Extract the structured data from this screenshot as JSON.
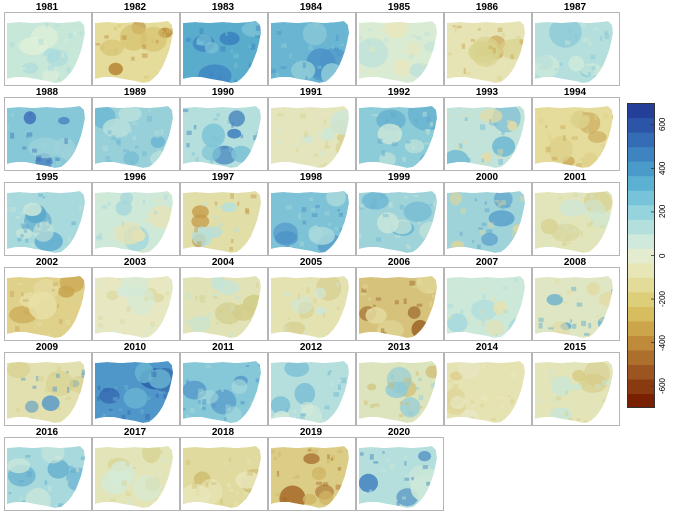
{
  "figure": {
    "panels": [
      {
        "year": "1981",
        "base": "#c7e7d9",
        "blobs": [
          {
            "c": "#a7d9dd",
            "r": 0.35
          },
          {
            "c": "#dff0d9",
            "r": 0.3
          }
        ]
      },
      {
        "year": "1982",
        "base": "#e5dc9b",
        "blobs": [
          {
            "c": "#b98a3a",
            "r": 0.28
          },
          {
            "c": "#d4bf6a",
            "r": 0.4
          }
        ]
      },
      {
        "year": "1983",
        "base": "#5aaccd",
        "blobs": [
          {
            "c": "#3a7fbf",
            "r": 0.4
          },
          {
            "c": "#7cc3d6",
            "r": 0.3
          }
        ]
      },
      {
        "year": "1984",
        "base": "#6ab6d2",
        "blobs": [
          {
            "c": "#4b93c8",
            "r": 0.4
          },
          {
            "c": "#8fcbd8",
            "r": 0.3
          }
        ]
      },
      {
        "year": "1985",
        "base": "#d9ecd3",
        "blobs": [
          {
            "c": "#bfe1da",
            "r": 0.35
          },
          {
            "c": "#e9e6bc",
            "r": 0.3
          }
        ]
      },
      {
        "year": "1986",
        "base": "#e6e4b4",
        "blobs": [
          {
            "c": "#c9a24e",
            "r": 0.2
          },
          {
            "c": "#d8d38e",
            "r": 0.35
          }
        ]
      },
      {
        "year": "1987",
        "base": "#b4dfdc",
        "blobs": [
          {
            "c": "#84c6d8",
            "r": 0.35
          },
          {
            "c": "#cfeadb",
            "r": 0.3
          }
        ]
      },
      {
        "year": "1988",
        "base": "#86c8d8",
        "blobs": [
          {
            "c": "#3f6fb8",
            "r": 0.22
          },
          {
            "c": "#9fd3da",
            "r": 0.35
          }
        ]
      },
      {
        "year": "1989",
        "base": "#98d0d9",
        "blobs": [
          {
            "c": "#6ab6d2",
            "r": 0.35
          },
          {
            "c": "#b8e0dc",
            "r": 0.3
          }
        ]
      },
      {
        "year": "1990",
        "base": "#b4dfdc",
        "blobs": [
          {
            "c": "#3b7dbd",
            "r": 0.28
          },
          {
            "c": "#7cc3d6",
            "r": 0.3
          }
        ]
      },
      {
        "year": "1991",
        "base": "#e4e5bc",
        "blobs": [
          {
            "c": "#d6d08f",
            "r": 0.3
          },
          {
            "c": "#cde7d8",
            "r": 0.3
          }
        ]
      },
      {
        "year": "1992",
        "base": "#8ccbd8",
        "blobs": [
          {
            "c": "#5aa8cd",
            "r": 0.4
          },
          {
            "c": "#c9e6d9",
            "r": 0.3
          }
        ]
      },
      {
        "year": "1993",
        "base": "#c2e3da",
        "blobs": [
          {
            "c": "#6ab6d2",
            "r": 0.3
          },
          {
            "c": "#e2dca5",
            "r": 0.25
          }
        ]
      },
      {
        "year": "1994",
        "base": "#e5dc9b",
        "blobs": [
          {
            "c": "#c7a350",
            "r": 0.25
          },
          {
            "c": "#dcd08a",
            "r": 0.35
          }
        ]
      },
      {
        "year": "1995",
        "base": "#a7d9dd",
        "blobs": [
          {
            "c": "#5aa8cd",
            "r": 0.3
          },
          {
            "c": "#c9e6d9",
            "r": 0.3
          }
        ]
      },
      {
        "year": "1996",
        "base": "#cfe9d9",
        "blobs": [
          {
            "c": "#a3d7dc",
            "r": 0.3
          },
          {
            "c": "#e5e2b5",
            "r": 0.3
          }
        ]
      },
      {
        "year": "1997",
        "base": "#e2dea8",
        "blobs": [
          {
            "c": "#c49a48",
            "r": 0.22
          },
          {
            "c": "#b7dfdb",
            "r": 0.3
          }
        ]
      },
      {
        "year": "1998",
        "base": "#7dc2d6",
        "blobs": [
          {
            "c": "#4a8fc6",
            "r": 0.35
          },
          {
            "c": "#a8d9dc",
            "r": 0.3
          }
        ]
      },
      {
        "year": "1999",
        "base": "#9fd3da",
        "blobs": [
          {
            "c": "#6ab6d2",
            "r": 0.35
          },
          {
            "c": "#c9e6d9",
            "r": 0.3
          }
        ]
      },
      {
        "year": "2000",
        "base": "#9fd3da",
        "blobs": [
          {
            "c": "#5aa0cc",
            "r": 0.3
          },
          {
            "c": "#e0d69a",
            "r": 0.22
          }
        ]
      },
      {
        "year": "2001",
        "base": "#e1e5b9",
        "blobs": [
          {
            "c": "#d8d294",
            "r": 0.3
          },
          {
            "c": "#cde7d8",
            "r": 0.3
          }
        ]
      },
      {
        "year": "2002",
        "base": "#dfd08a",
        "blobs": [
          {
            "c": "#c9a54f",
            "r": 0.3
          },
          {
            "c": "#e8e0a8",
            "r": 0.3
          }
        ]
      },
      {
        "year": "2003",
        "base": "#e7e7c1",
        "blobs": [
          {
            "c": "#dcd8a0",
            "r": 0.3
          },
          {
            "c": "#d3eada",
            "r": 0.3
          }
        ]
      },
      {
        "year": "2004",
        "base": "#e1e3b6",
        "blobs": [
          {
            "c": "#d2cd8a",
            "r": 0.3
          },
          {
            "c": "#c4e4da",
            "r": 0.3
          }
        ]
      },
      {
        "year": "2005",
        "base": "#e3e2b0",
        "blobs": [
          {
            "c": "#d8d090",
            "r": 0.3
          },
          {
            "c": "#cfe8d9",
            "r": 0.25
          }
        ]
      },
      {
        "year": "2006",
        "base": "#d6c27a",
        "blobs": [
          {
            "c": "#9c6628",
            "r": 0.22
          },
          {
            "c": "#e4dba0",
            "r": 0.3
          }
        ]
      },
      {
        "year": "2007",
        "base": "#cce8d9",
        "blobs": [
          {
            "c": "#a7d9dd",
            "r": 0.3
          },
          {
            "c": "#e3e1b2",
            "r": 0.3
          }
        ]
      },
      {
        "year": "2008",
        "base": "#dfe6c3",
        "blobs": [
          {
            "c": "#5aa8cd",
            "r": 0.2
          },
          {
            "c": "#e2dba4",
            "r": 0.3
          }
        ]
      },
      {
        "year": "2009",
        "base": "#e2e0ae",
        "blobs": [
          {
            "c": "#4d94c8",
            "r": 0.22
          },
          {
            "c": "#d8d08f",
            "r": 0.3
          }
        ]
      },
      {
        "year": "2010",
        "base": "#4f97c9",
        "blobs": [
          {
            "c": "#2f62ad",
            "r": 0.4
          },
          {
            "c": "#6ab6d2",
            "r": 0.3
          }
        ]
      },
      {
        "year": "2011",
        "base": "#86c8d8",
        "blobs": [
          {
            "c": "#4a8fc6",
            "r": 0.3
          },
          {
            "c": "#a8d9dc",
            "r": 0.3
          }
        ]
      },
      {
        "year": "2012",
        "base": "#b4dfdc",
        "blobs": [
          {
            "c": "#6ab6d2",
            "r": 0.3
          },
          {
            "c": "#d2e9d9",
            "r": 0.3
          }
        ]
      },
      {
        "year": "2013",
        "base": "#dce4bd",
        "blobs": [
          {
            "c": "#d0b86a",
            "r": 0.22
          },
          {
            "c": "#8fcbd8",
            "r": 0.3
          }
        ]
      },
      {
        "year": "2014",
        "base": "#e6e3b3",
        "blobs": [
          {
            "c": "#dbcf8c",
            "r": 0.3
          },
          {
            "c": "#e8e8c6",
            "r": 0.3
          }
        ]
      },
      {
        "year": "2015",
        "base": "#e3e4b8",
        "blobs": [
          {
            "c": "#d6cb86",
            "r": 0.3
          },
          {
            "c": "#c7e6da",
            "r": 0.25
          }
        ]
      },
      {
        "year": "2016",
        "base": "#a7d9dd",
        "blobs": [
          {
            "c": "#5aa8cd",
            "r": 0.3
          },
          {
            "c": "#cbe7d9",
            "r": 0.3
          }
        ]
      },
      {
        "year": "2017",
        "base": "#e3e4b8",
        "blobs": [
          {
            "c": "#d8d292",
            "r": 0.3
          },
          {
            "c": "#d4ebda",
            "r": 0.3
          }
        ]
      },
      {
        "year": "2018",
        "base": "#e0da9f",
        "blobs": [
          {
            "c": "#d0bf72",
            "r": 0.3
          },
          {
            "c": "#e8e6bc",
            "r": 0.3
          }
        ]
      },
      {
        "year": "2019",
        "base": "#dccd86",
        "blobs": [
          {
            "c": "#a66b2a",
            "r": 0.28
          },
          {
            "c": "#cfb564",
            "r": 0.3
          }
        ]
      },
      {
        "year": "2020",
        "base": "#b4dfdc",
        "blobs": [
          {
            "c": "#3f7fc0",
            "r": 0.25
          },
          {
            "c": "#cce8d9",
            "r": 0.3
          }
        ]
      }
    ]
  },
  "legend": {
    "ticks": [
      "600",
      "400",
      "200",
      "0",
      "-200",
      "-400",
      "-600"
    ],
    "tick_values": [
      600,
      400,
      200,
      0,
      -200,
      -400,
      -600
    ],
    "min": -700,
    "max": 700,
    "colors": [
      "#782000",
      "#8a3a10",
      "#9c5520",
      "#ad6f2c",
      "#bf8a3a",
      "#cca54b",
      "#d7bd60",
      "#ddcf7a",
      "#e2dc98",
      "#e7e6b6",
      "#e3eccf",
      "#cfe9dc",
      "#b3e0dd",
      "#95d3dd",
      "#77c4da",
      "#5cb1d3",
      "#4a9bca",
      "#3d84c0",
      "#346cb5",
      "#2c55a7",
      "#233f98"
    ]
  }
}
